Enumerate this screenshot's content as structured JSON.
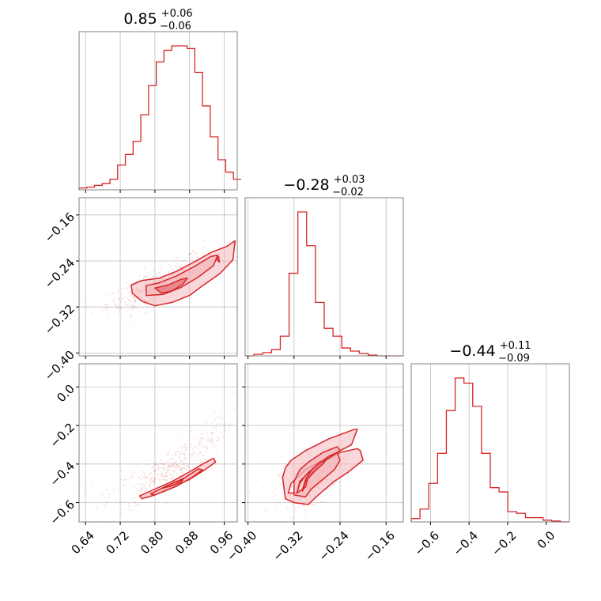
{
  "chart_data": {
    "type": "corner",
    "style": {
      "line_color": "#d62728",
      "fill_color": "#f4b6bb",
      "fill_dark": "#e8777f",
      "frame_color": "#808080",
      "grid_color": "#bfbfbf",
      "grid": true
    },
    "params": [
      {
        "range": [
          0.625,
          0.99
        ],
        "ticks": [
          "0.64",
          "0.72",
          "0.80",
          "0.88",
          "0.96"
        ],
        "tick_values": [
          0.64,
          0.72,
          0.8,
          0.88,
          0.96
        ],
        "title": {
          "median": "0.85",
          "plus": "+0.06",
          "minus": "−0.06"
        },
        "hist": {
          "edges": [
            0.625,
            0.999
          ],
          "counts": [
            2,
            3,
            5,
            7,
            12,
            28,
            40,
            55,
            85,
            118,
            145,
            158,
            163,
            163,
            160,
            133,
            95,
            60,
            34,
            20,
            12
          ]
        }
      },
      {
        "range": [
          -0.405,
          -0.13
        ],
        "ticks": [
          "−0.40",
          "−0.32",
          "−0.24",
          "−0.16"
        ],
        "tick_values": [
          -0.4,
          -0.32,
          -0.24,
          -0.16
        ],
        "title": {
          "median": "−0.28",
          "plus": "+0.03",
          "minus": "−0.02"
        },
        "hist": {
          "edges": [
            -0.405,
            -0.13
          ],
          "counts": [
            0,
            2,
            4,
            8,
            25,
            105,
            183,
            140,
            68,
            35,
            25,
            10,
            6,
            3,
            1,
            0,
            0,
            0
          ]
        }
      },
      {
        "range": [
          -0.7,
          0.12
        ],
        "ticks": [
          "−0.6",
          "−0.4",
          "−0.2",
          "0.0"
        ],
        "tick_values": [
          -0.6,
          -0.4,
          -0.2,
          0.0
        ],
        "title": {
          "median": "−0.44",
          "plus": "+0.11",
          "minus": "−0.09"
        },
        "hist": {
          "edges": [
            -0.7,
            0.12
          ],
          "counts": [
            4,
            15,
            45,
            80,
            130,
            168,
            162,
            135,
            80,
            40,
            35,
            12,
            10,
            5,
            5,
            2,
            1,
            0
          ]
        }
      }
    ],
    "pairs": [
      {
        "x": 0,
        "y": 1,
        "samples": {
          "center": [
            0.8,
            -0.285
          ],
          "spread": [
            0.055,
            0.025
          ],
          "trend": "curved-up",
          "count": 420
        },
        "contours": [
          [
            [
              0.745,
              -0.282
            ],
            [
              0.77,
              -0.274
            ],
            [
              0.81,
              -0.27
            ],
            [
              0.85,
              -0.258
            ],
            [
              0.89,
              -0.242
            ],
            [
              0.93,
              -0.225
            ],
            [
              0.965,
              -0.215
            ],
            [
              0.985,
              -0.205
            ],
            [
              0.98,
              -0.238
            ],
            [
              0.95,
              -0.262
            ],
            [
              0.91,
              -0.283
            ],
            [
              0.88,
              -0.3
            ],
            [
              0.84,
              -0.312
            ],
            [
              0.8,
              -0.318
            ],
            [
              0.77,
              -0.31
            ],
            [
              0.748,
              -0.296
            ],
            [
              0.745,
              -0.282
            ]
          ],
          [
            [
              0.78,
              -0.283
            ],
            [
              0.81,
              -0.278
            ],
            [
              0.85,
              -0.266
            ],
            [
              0.89,
              -0.25
            ],
            [
              0.93,
              -0.232
            ],
            [
              0.945,
              -0.23
            ],
            [
              0.935,
              -0.248
            ],
            [
              0.9,
              -0.268
            ],
            [
              0.86,
              -0.286
            ],
            [
              0.82,
              -0.298
            ],
            [
              0.78,
              -0.3
            ],
            [
              0.78,
              -0.283
            ]
          ],
          [
            [
              0.8,
              -0.287
            ],
            [
              0.83,
              -0.282
            ],
            [
              0.86,
              -0.272
            ],
            [
              0.875,
              -0.27
            ],
            [
              0.865,
              -0.28
            ],
            [
              0.84,
              -0.292
            ],
            [
              0.815,
              -0.296
            ],
            [
              0.8,
              -0.287
            ]
          ],
          [
            [
              0.942,
              -0.237
            ],
            [
              0.947,
              -0.232
            ],
            [
              0.949,
              -0.242
            ],
            [
              0.942,
              -0.237
            ]
          ]
        ]
      },
      {
        "x": 0,
        "y": 2,
        "samples": {
          "center": [
            0.84,
            -0.47
          ],
          "spread": [
            0.07,
            0.1
          ],
          "trend": "curved-up",
          "count": 420
        },
        "contours": [
          [
            [
              0.765,
              -0.565
            ],
            [
              0.8,
              -0.53
            ],
            [
              0.84,
              -0.49
            ],
            [
              0.88,
              -0.44
            ],
            [
              0.91,
              -0.4
            ],
            [
              0.935,
              -0.37
            ],
            [
              0.94,
              -0.39
            ],
            [
              0.915,
              -0.43
            ],
            [
              0.88,
              -0.48
            ],
            [
              0.84,
              -0.52
            ],
            [
              0.8,
              -0.56
            ],
            [
              0.77,
              -0.58
            ],
            [
              0.765,
              -0.565
            ]
          ],
          [
            [
              0.79,
              -0.555
            ],
            [
              0.83,
              -0.51
            ],
            [
              0.87,
              -0.47
            ],
            [
              0.9,
              -0.425
            ],
            [
              0.91,
              -0.43
            ],
            [
              0.885,
              -0.47
            ],
            [
              0.85,
              -0.515
            ],
            [
              0.8,
              -0.56
            ],
            [
              0.79,
              -0.555
            ]
          ],
          [
            [
              0.818,
              -0.525
            ],
            [
              0.84,
              -0.5
            ],
            [
              0.865,
              -0.48
            ],
            [
              0.86,
              -0.495
            ],
            [
              0.835,
              -0.515
            ],
            [
              0.818,
              -0.525
            ]
          ]
        ]
      },
      {
        "x": 1,
        "y": 2,
        "samples": {
          "center": [
            -0.285,
            -0.45
          ],
          "spread": [
            0.03,
            0.1
          ],
          "trend": "curved-up",
          "count": 420
        },
        "contours": [
          [
            [
              -0.33,
              -0.55
            ],
            [
              -0.325,
              -0.5
            ],
            [
              -0.3,
              -0.43
            ],
            [
              -0.265,
              -0.37
            ],
            [
              -0.22,
              -0.3
            ],
            [
              -0.21,
              -0.22
            ],
            [
              -0.215,
              -0.22
            ],
            [
              -0.26,
              -0.27
            ],
            [
              -0.3,
              -0.33
            ],
            [
              -0.325,
              -0.38
            ],
            [
              -0.335,
              -0.42
            ],
            [
              -0.34,
              -0.47
            ],
            [
              -0.335,
              -0.58
            ],
            [
              -0.32,
              -0.6
            ],
            [
              -0.295,
              -0.61
            ],
            [
              -0.285,
              -0.58
            ],
            [
              -0.27,
              -0.54
            ],
            [
              -0.25,
              -0.49
            ],
            [
              -0.225,
              -0.44
            ],
            [
              -0.2,
              -0.38
            ],
            [
              -0.205,
              -0.33
            ],
            [
              -0.21,
              -0.32
            ],
            [
              -0.24,
              -0.34
            ],
            [
              -0.27,
              -0.39
            ],
            [
              -0.295,
              -0.44
            ],
            [
              -0.31,
              -0.5
            ],
            [
              -0.315,
              -0.55
            ],
            [
              -0.33,
              -0.55
            ]
          ],
          [
            [
              -0.315,
              -0.55
            ],
            [
              -0.31,
              -0.49
            ],
            [
              -0.29,
              -0.43
            ],
            [
              -0.26,
              -0.37
            ],
            [
              -0.24,
              -0.33
            ],
            [
              -0.245,
              -0.31
            ],
            [
              -0.27,
              -0.34
            ],
            [
              -0.295,
              -0.39
            ],
            [
              -0.31,
              -0.43
            ],
            [
              -0.32,
              -0.49
            ],
            [
              -0.32,
              -0.56
            ],
            [
              -0.3,
              -0.57
            ],
            [
              -0.29,
              -0.53
            ],
            [
              -0.27,
              -0.48
            ],
            [
              -0.25,
              -0.43
            ],
            [
              -0.24,
              -0.38
            ],
            [
              -0.245,
              -0.34
            ],
            [
              -0.26,
              -0.36
            ],
            [
              -0.28,
              -0.41
            ],
            [
              -0.295,
              -0.46
            ],
            [
              -0.3,
              -0.52
            ],
            [
              -0.315,
              -0.55
            ]
          ],
          [
            [
              -0.305,
              -0.54
            ],
            [
              -0.3,
              -0.49
            ],
            [
              -0.285,
              -0.44
            ],
            [
              -0.27,
              -0.4
            ],
            [
              -0.265,
              -0.38
            ],
            [
              -0.275,
              -0.39
            ],
            [
              -0.29,
              -0.43
            ],
            [
              -0.3,
              -0.48
            ],
            [
              -0.305,
              -0.53
            ],
            [
              -0.305,
              -0.54
            ]
          ]
        ]
      }
    ]
  }
}
